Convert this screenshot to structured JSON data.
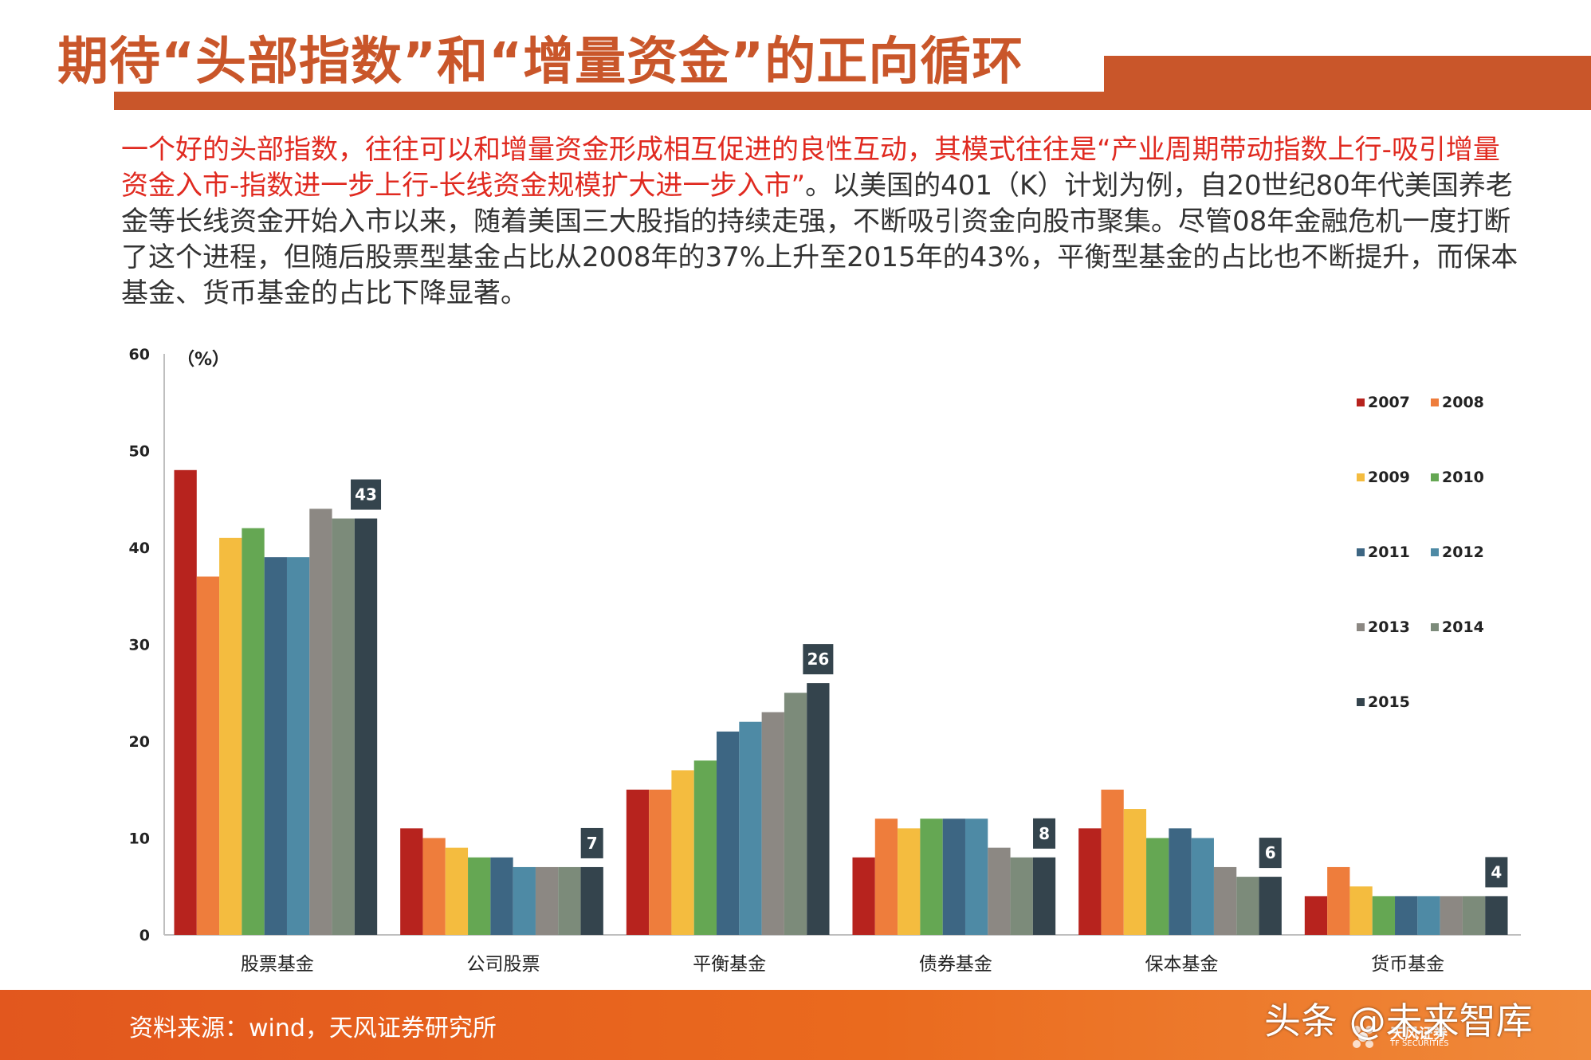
{
  "title": "期待“头部指数”和“增量资金”的正向循环",
  "intro": {
    "highlight": "一个好的头部指数，往往可以和增量资金形成相互促进的良性互动，其模式往往是“产业周期带动指数上行-吸引增量资金入市-指数进一步上行-长线资金规模扩大进一步入市”",
    "rest": "。以美国的401（K）计划为例，自20世纪80年代美国养老金等长线资金开始入市以来，随着美国三大股指的持续走强，不断吸引资金向股市聚集。尽管08年金融危机一度打断了这个进程，但随后股票型基金占比从2008年的37%上升至2015年的43%，平衡型基金的占比也不断提升，而保本基金、货币基金的占比下降显著。"
  },
  "chart_data": {
    "type": "bar",
    "title": "",
    "unit_label": "（%）",
    "xlabel": "",
    "ylabel": "",
    "ylim": [
      0,
      60
    ],
    "yticks": [
      0,
      10,
      20,
      30,
      40,
      50,
      60
    ],
    "grid": false,
    "legend_position": "right",
    "categories": [
      "股票基金",
      "公司股票",
      "平衡基金",
      "债券基金",
      "保本基金",
      "货币基金"
    ],
    "series": [
      {
        "name": "2007",
        "color": "#b7231e",
        "values": [
          48,
          11,
          15,
          8,
          11,
          4
        ]
      },
      {
        "name": "2008",
        "color": "#ee7d3c",
        "values": [
          37,
          10,
          15,
          12,
          15,
          7
        ]
      },
      {
        "name": "2009",
        "color": "#f4bc3f",
        "values": [
          41,
          9,
          17,
          11,
          13,
          5
        ]
      },
      {
        "name": "2010",
        "color": "#65a753",
        "values": [
          42,
          8,
          18,
          12,
          10,
          4
        ]
      },
      {
        "name": "2011",
        "color": "#3d6683",
        "values": [
          39,
          8,
          21,
          12,
          11,
          4
        ]
      },
      {
        "name": "2012",
        "color": "#4e8aa5",
        "values": [
          39,
          7,
          22,
          12,
          10,
          4
        ]
      },
      {
        "name": "2013",
        "color": "#8c8883",
        "values": [
          44,
          7,
          23,
          9,
          7,
          4
        ]
      },
      {
        "name": "2014",
        "color": "#7c8b7a",
        "values": [
          43,
          7,
          25,
          8,
          6,
          4
        ]
      },
      {
        "name": "2015",
        "color": "#34444d",
        "values": [
          43,
          7,
          26,
          8,
          6,
          4
        ]
      }
    ],
    "data_labels": {
      "series": "2015",
      "values": [
        "43",
        "7",
        "26",
        "8",
        "6",
        "4"
      ]
    }
  },
  "footer": {
    "source": "资料来源：wind，天风证券研究所",
    "watermark": "头条 @未来智库",
    "logo_text": "天风证券",
    "logo_sub": "TF SECURITIES"
  },
  "colors": {
    "brand": "#c9562a",
    "highlight_text": "#e02a20",
    "footer": "#e2571e"
  }
}
